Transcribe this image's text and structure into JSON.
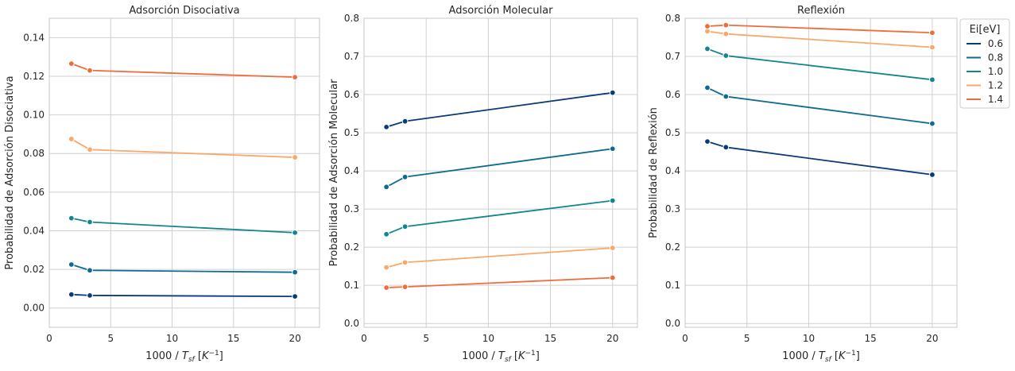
{
  "colors": {
    "0.6": "#0b3a7a",
    "0.8": "#0f6b8f",
    "1.0": "#12868f",
    "1.2": "#f9a86a",
    "1.4": "#ef6d3b"
  },
  "legend": {
    "title": "Ei[eV]",
    "placement": "upper-right-outside",
    "entries": [
      "0.6",
      "0.8",
      "1.0",
      "1.2",
      "1.4"
    ]
  },
  "chart_data": [
    {
      "type": "line",
      "title": "Adsorción Disociativa",
      "xlabel": "1000 / T_sf [K^-1]",
      "ylabel": "Probabilidad de Adsorción Disociativa",
      "xlim": [
        0,
        22
      ],
      "ylim": [
        -0.01,
        0.15
      ],
      "xticks": [
        "0",
        "5",
        "10",
        "15",
        "20"
      ],
      "xtick_values": [
        0,
        5,
        10,
        15,
        20
      ],
      "yticks": [
        "0.00",
        "0.02",
        "0.04",
        "0.06",
        "0.08",
        "0.10",
        "0.12",
        "0.14"
      ],
      "ytick_values": [
        0,
        0.02,
        0.04,
        0.06,
        0.08,
        0.1,
        0.12,
        0.14
      ],
      "grid": true,
      "x": [
        1.8,
        3.3,
        20
      ],
      "series": [
        {
          "name": "0.6",
          "values": [
            0.007,
            0.0065,
            0.006
          ]
        },
        {
          "name": "0.8",
          "values": [
            0.0225,
            0.0195,
            0.0185
          ]
        },
        {
          "name": "1.0",
          "values": [
            0.0465,
            0.0445,
            0.039
          ]
        },
        {
          "name": "1.2",
          "values": [
            0.0875,
            0.082,
            0.078
          ]
        },
        {
          "name": "1.4",
          "values": [
            0.1265,
            0.123,
            0.1195
          ]
        }
      ]
    },
    {
      "type": "line",
      "title": "Adsorción Molecular",
      "xlabel": "1000 / T_sf [K^-1]",
      "ylabel": "Probabilidad de Adsorción Molecular",
      "xlim": [
        0,
        22
      ],
      "ylim": [
        -0.01,
        0.8
      ],
      "xticks": [
        "0",
        "5",
        "10",
        "15",
        "20"
      ],
      "xtick_values": [
        0,
        5,
        10,
        15,
        20
      ],
      "yticks": [
        "0.0",
        "0.1",
        "0.2",
        "0.3",
        "0.4",
        "0.5",
        "0.6",
        "0.7",
        "0.8"
      ],
      "ytick_values": [
        0,
        0.1,
        0.2,
        0.3,
        0.4,
        0.5,
        0.6,
        0.7,
        0.8
      ],
      "grid": true,
      "x": [
        1.8,
        3.3,
        20
      ],
      "series": [
        {
          "name": "0.6",
          "values": [
            0.515,
            0.53,
            0.605
          ]
        },
        {
          "name": "0.8",
          "values": [
            0.358,
            0.384,
            0.458
          ]
        },
        {
          "name": "1.0",
          "values": [
            0.234,
            0.254,
            0.322
          ]
        },
        {
          "name": "1.2",
          "values": [
            0.147,
            0.16,
            0.198
          ]
        },
        {
          "name": "1.4",
          "values": [
            0.094,
            0.096,
            0.12
          ]
        }
      ]
    },
    {
      "type": "line",
      "title": "Reflexión",
      "xlabel": "1000 / T_sf [K^-1]",
      "ylabel": "Probabilidad de Reflexión",
      "xlim": [
        0,
        22
      ],
      "ylim": [
        -0.01,
        0.8
      ],
      "xticks": [
        "0",
        "5",
        "10",
        "15",
        "20"
      ],
      "xtick_values": [
        0,
        5,
        10,
        15,
        20
      ],
      "yticks": [
        "0.0",
        "0.1",
        "0.2",
        "0.3",
        "0.4",
        "0.5",
        "0.6",
        "0.7",
        "0.8"
      ],
      "ytick_values": [
        0,
        0.1,
        0.2,
        0.3,
        0.4,
        0.5,
        0.6,
        0.7,
        0.8
      ],
      "grid": true,
      "x": [
        1.8,
        3.3,
        20
      ],
      "series": [
        {
          "name": "0.6",
          "values": [
            0.477,
            0.462,
            0.39
          ]
        },
        {
          "name": "0.8",
          "values": [
            0.618,
            0.595,
            0.524
          ]
        },
        {
          "name": "1.0",
          "values": [
            0.72,
            0.702,
            0.639
          ]
        },
        {
          "name": "1.2",
          "values": [
            0.766,
            0.759,
            0.724
          ]
        },
        {
          "name": "1.4",
          "values": [
            0.779,
            0.782,
            0.762
          ]
        }
      ]
    }
  ]
}
